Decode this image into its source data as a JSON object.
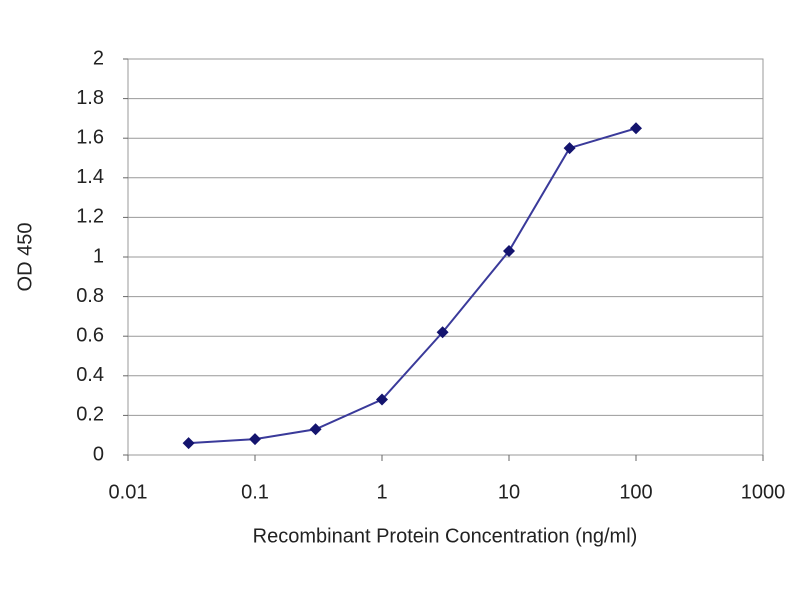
{
  "chart_data": {
    "type": "line",
    "x_label": "Recombinant Protein Concentration (ng/ml)",
    "y_label": "OD 450",
    "x": [
      0.03,
      0.1,
      0.3,
      1,
      3,
      10,
      30,
      100
    ],
    "values": [
      0.06,
      0.08,
      0.13,
      0.28,
      0.62,
      1.03,
      1.55,
      1.65
    ],
    "color": "#3a3a9a",
    "marker_color": "#14146e",
    "xscale": "log",
    "xlim": [
      0.01,
      1000
    ],
    "xticks": [
      0.01,
      0.1,
      1,
      10,
      100,
      1000
    ],
    "ylim": [
      0,
      2
    ],
    "yticks": [
      0,
      0.2,
      0.4,
      0.6,
      0.8,
      1,
      1.2,
      1.4,
      1.6,
      1.8,
      2
    ],
    "grid": true
  }
}
